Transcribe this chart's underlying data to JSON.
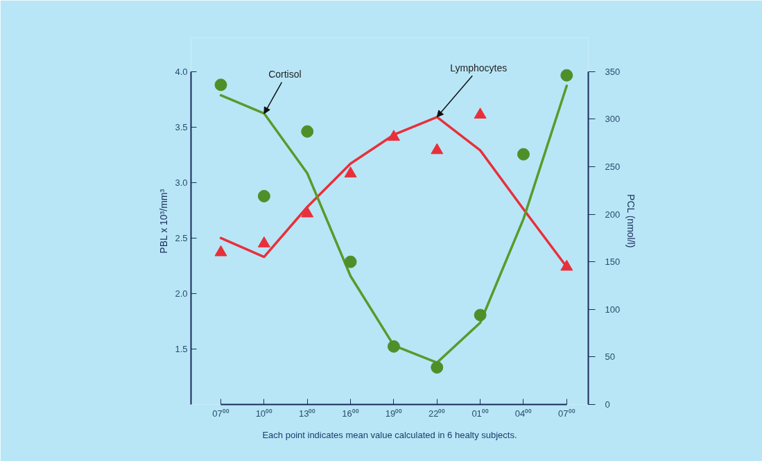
{
  "chart_data": {
    "type": "scatter",
    "ylabel": "PBL x 10³/mm³",
    "y2label": "PCL (nmol/l)",
    "categories": [
      "07⁰⁰",
      "10⁰⁰",
      "13⁰⁰",
      "16⁰⁰",
      "19⁰⁰",
      "22⁰⁰",
      "01⁰⁰",
      "04⁰⁰",
      "07⁰⁰"
    ],
    "ylim": [
      1,
      4
    ],
    "yticks": [
      {
        "value": 1.5,
        "label": "1.5"
      },
      {
        "value": 2,
        "label": "2.0"
      },
      {
        "value": 2.5,
        "label": "2.5"
      },
      {
        "value": 3,
        "label": "3.0"
      },
      {
        "value": 3.5,
        "label": "3.5"
      },
      {
        "value": 4,
        "label": "4.0"
      }
    ],
    "y2lim": [
      0,
      350
    ],
    "y2ticks": [
      0,
      50,
      100,
      150,
      200,
      250,
      300,
      350
    ],
    "series": [
      {
        "type": "line",
        "color": "#e8303a",
        "values": [
          2.5,
          2.33,
          2.78,
          3.17,
          3.43,
          3.59,
          3.29,
          2.76,
          2.24
        ]
      },
      {
        "type": "line",
        "axis": "y2",
        "color": "#5a9a2a",
        "values": [
          325,
          306,
          243,
          135,
          62,
          44,
          86,
          195,
          335
        ]
      },
      {
        "color": "#e8303a",
        "marker": "triangle",
        "values": [
          2.37,
          2.45,
          2.72,
          3.08,
          3.41,
          3.29,
          3.61,
          null,
          2.24
        ]
      },
      {
        "axis": "y2",
        "color": "#4f8f2a",
        "marker": "circle",
        "values": [
          336,
          219,
          287,
          150,
          61,
          39,
          94,
          263,
          346
        ]
      }
    ],
    "annotations": [
      {
        "text": "Cortisol",
        "x": "10⁰⁰",
        "y": 3.62
      },
      {
        "text": "Lymphocytes",
        "x": "22⁰⁰",
        "y": 3.59
      },
      "Each point indicates mean value calculated in 6 healty subjects."
    ]
  }
}
